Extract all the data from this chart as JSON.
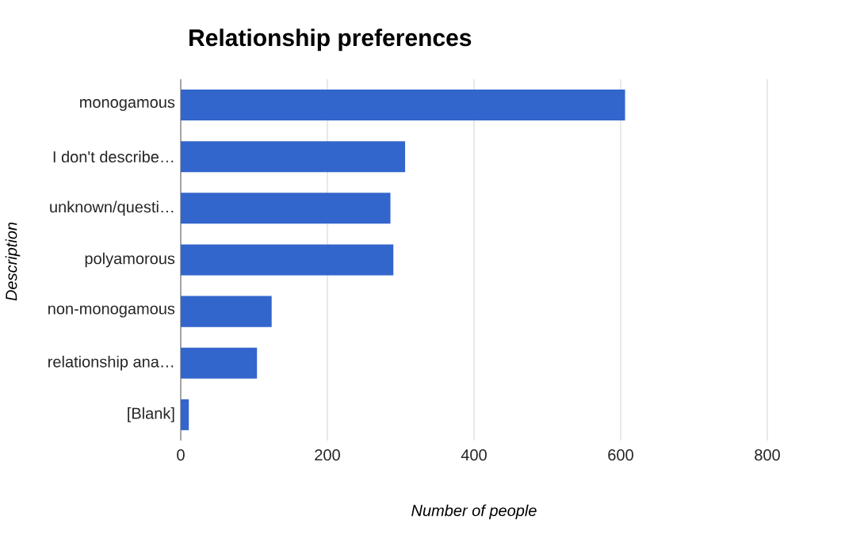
{
  "chart_data": {
    "type": "bar",
    "orientation": "horizontal",
    "title": "Relationship preferences",
    "xlabel": "Number of people",
    "ylabel": "Description",
    "categories": [
      "monogamous",
      "I don't describe…",
      "unknown/questi…",
      "polyamorous",
      "non-monogamous",
      "relationship ana…",
      "[Blank]"
    ],
    "values": [
      606,
      306,
      286,
      290,
      124,
      104,
      11
    ],
    "color": "#3366cc",
    "xlim": [
      0,
      800
    ],
    "xticks": [
      0,
      200,
      400,
      600,
      800
    ],
    "grid": "x"
  }
}
